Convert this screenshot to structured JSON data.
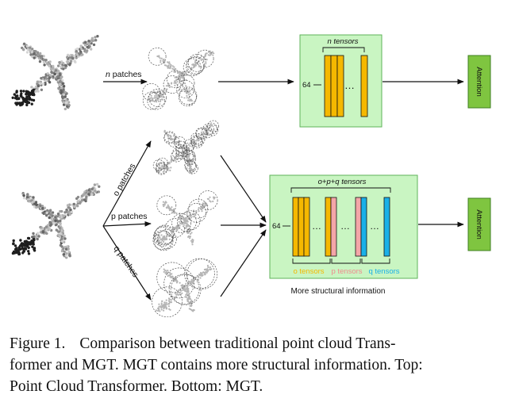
{
  "top": {
    "patches_var": "n",
    "patches_word": "patches",
    "tensors_label": "n tensors",
    "dim_label": "64",
    "ellipsis": "…",
    "attention_label": "Attention"
  },
  "bottom": {
    "o_patches": "o patches",
    "p_patches": "p patches",
    "q_patches": "q patches",
    "tensors_label": "o+p+q tensors",
    "dim_label": "64",
    "ellipsis": "…",
    "o_tensors": "o tensors",
    "p_tensors": "p tensors",
    "q_tensors": "q tensors",
    "structural_note": "More structural information",
    "attention_label": "Attention"
  },
  "caption": {
    "label": "Figure 1.",
    "line1": "Comparison between traditional point cloud Trans-",
    "line2": "former and MGT. MGT contains more structural information. Top:",
    "line3": "Point Cloud Transformer. Bottom: MGT."
  },
  "colors": {
    "orange": "#f5b800",
    "pink": "#f4a6a8",
    "blue": "#1ab0e8",
    "panel": "#c9f5c2",
    "attention": "#7fc540"
  }
}
